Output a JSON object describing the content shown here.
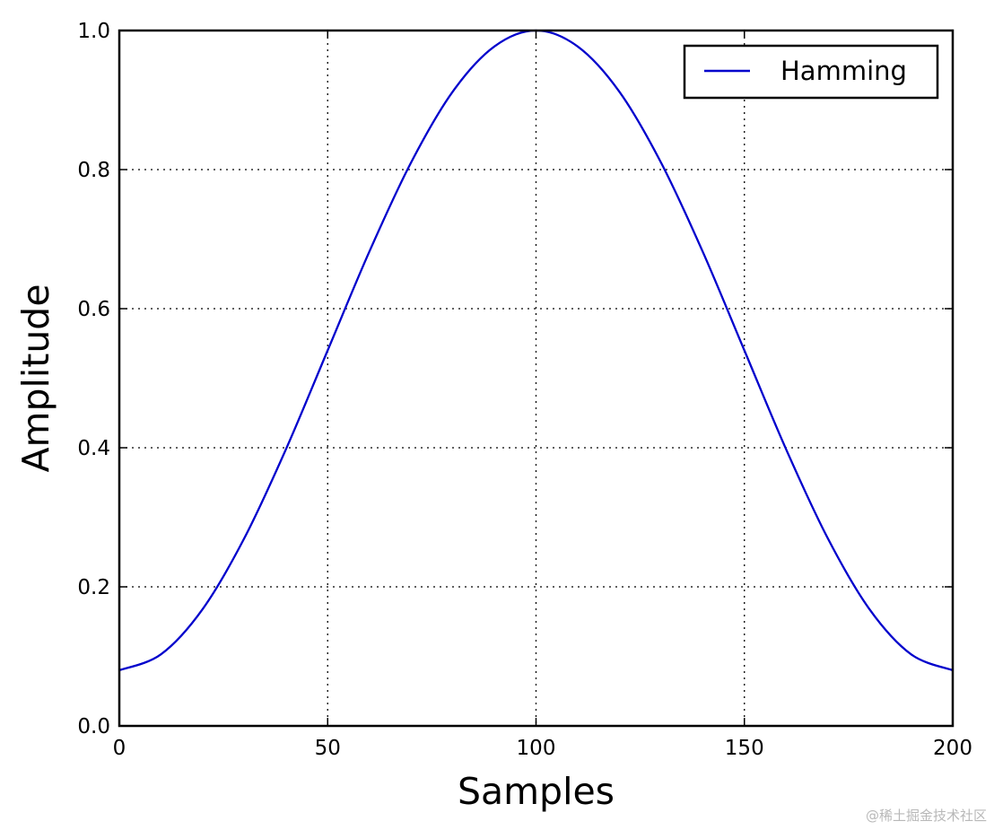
{
  "chart_data": {
    "type": "line",
    "title": "",
    "xlabel": "Samples",
    "ylabel": "Amplitude",
    "xlim": [
      0,
      200
    ],
    "ylim": [
      0.0,
      1.0
    ],
    "xticks": [
      0,
      50,
      100,
      150,
      200
    ],
    "xtick_labels": [
      "0",
      "50",
      "100",
      "150",
      "200"
    ],
    "yticks": [
      0.0,
      0.2,
      0.4,
      0.6,
      0.8,
      1.0
    ],
    "ytick_labels": [
      "0.0",
      "0.2",
      "0.4",
      "0.6",
      "0.8",
      "1.0"
    ],
    "grid": true,
    "grid_style": "dotted",
    "legend_position": "top-right",
    "series": [
      {
        "name": "Hamming",
        "color": "#0000cc",
        "x": [
          0,
          10,
          20,
          30,
          40,
          50,
          60,
          70,
          80,
          90,
          100,
          110,
          120,
          130,
          140,
          150,
          160,
          170,
          180,
          190,
          200
        ],
        "y": [
          0.08,
          0.103,
          0.168,
          0.27,
          0.398,
          0.54,
          0.682,
          0.81,
          0.912,
          0.977,
          1.0,
          0.977,
          0.912,
          0.81,
          0.682,
          0.54,
          0.398,
          0.27,
          0.168,
          0.103,
          0.08
        ]
      }
    ]
  },
  "watermark": "@稀土掘金技术社区"
}
